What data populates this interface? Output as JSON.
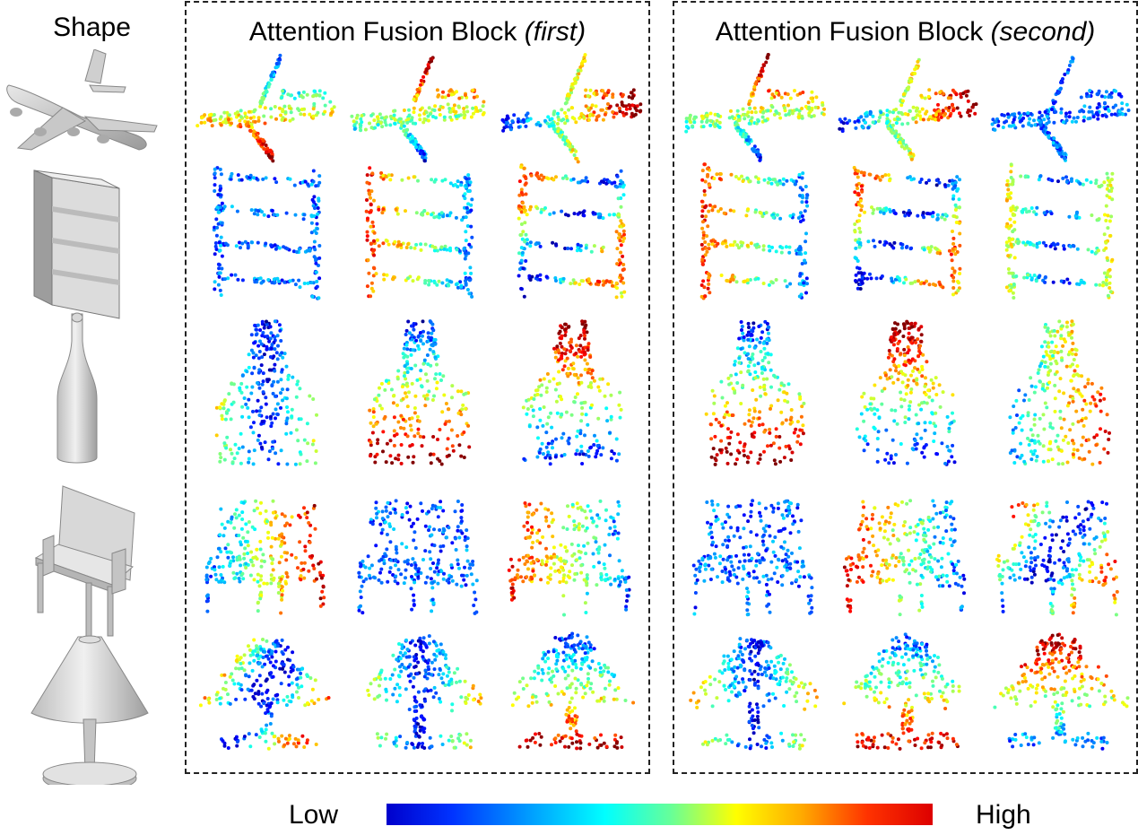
{
  "shape_column": {
    "title": "Shape",
    "shapes": [
      "airplane-icon",
      "bookshelf-icon",
      "bottle-icon",
      "chair-icon",
      "lamp-icon"
    ]
  },
  "blocks": [
    {
      "title": "Attention Fusion Block",
      "subtitle": "(first)"
    },
    {
      "title": "Attention Fusion Block",
      "subtitle": "(second)"
    }
  ],
  "colorbar": {
    "low_label": "Low",
    "high_label": "High",
    "colors": [
      "#0000cc",
      "#00aaff",
      "#00ffff",
      "#ffff00",
      "#ff3300",
      "#dd0000"
    ]
  }
}
